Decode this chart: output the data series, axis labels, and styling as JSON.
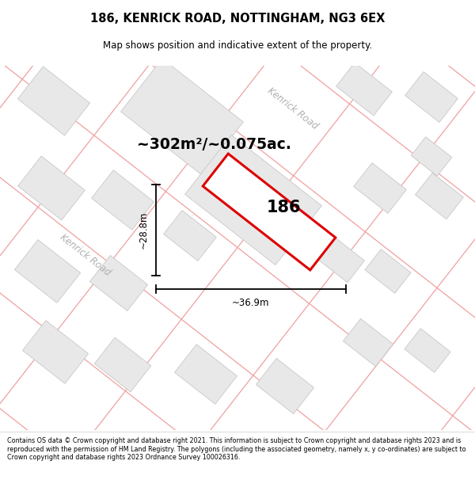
{
  "title_line1": "186, KENRICK ROAD, NOTTINGHAM, NG3 6EX",
  "title_line2": "Map shows position and indicative extent of the property.",
  "footer_text": "Contains OS data © Crown copyright and database right 2021. This information is subject to Crown copyright and database rights 2023 and is reproduced with the permission of HM Land Registry. The polygons (including the associated geometry, namely x, y co-ordinates) are subject to Crown copyright and database rights 2023 Ordnance Survey 100026316.",
  "area_text": "~302m²/~0.075ac.",
  "property_label": "186",
  "dim_width": "~36.9m",
  "dim_height": "~28.8m",
  "road_label": "Kenrick Road",
  "map_bg": "#ffffff",
  "building_color": "#e8e8e8",
  "building_edge": "#c8c8c8",
  "road_line_color": "#f0a0a0",
  "plot_color": "#dd0000",
  "title_color": "#000000",
  "footer_color": "#000000"
}
